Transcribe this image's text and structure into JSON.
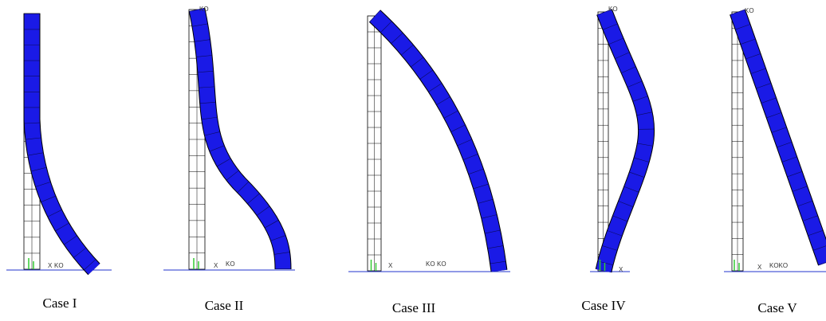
{
  "cases": [
    {
      "label": "Case I",
      "annotations": [
        "X",
        "KO"
      ]
    },
    {
      "label": "Case II",
      "annotations": [
        "KO",
        "X",
        "KO"
      ]
    },
    {
      "label": "Case III",
      "annotations": [
        "X",
        "KO",
        "KO"
      ]
    },
    {
      "label": "Case IV",
      "annotations": [
        "KO",
        "X"
      ]
    },
    {
      "label": "Case V",
      "annotations": [
        "KO",
        "X",
        "KOKO"
      ]
    }
  ]
}
